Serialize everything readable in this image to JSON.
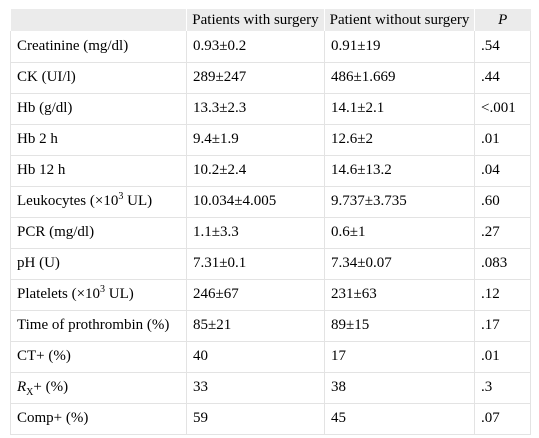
{
  "table": {
    "headers": [
      "",
      "Patients with surgery",
      "Patient without surgery",
      "P"
    ],
    "rows": [
      {
        "label": "Creatinine (mg/dl)",
        "with": "0.93±0.2",
        "without": "0.91±19",
        "p": ".54"
      },
      {
        "label": "CK (UI/l)",
        "with": "289±247",
        "without": "486±1.669",
        "p": ".44"
      },
      {
        "label": "Hb (g/dl)",
        "with": "13.3±2.3",
        "without": "14.1±2.1",
        "p": "<.001"
      },
      {
        "label": "Hb 2 h",
        "with": "9.4±1.9",
        "without": "12.6±2",
        "p": ".01"
      },
      {
        "label": "Hb 12 h",
        "with": "10.2±2.4",
        "without": "14.6±13.2",
        "p": ".04"
      },
      {
        "label_pre": "Leukocytes (×10",
        "label_sup": "3",
        "label_post": " UL)",
        "with": "10.034±4.005",
        "without": "9.737±3.735",
        "p": ".60"
      },
      {
        "label": "PCR (mg/dl)",
        "with": "1.1±3.3",
        "without": "0.6±1",
        "p": ".27"
      },
      {
        "label": "pH (U)",
        "with": "7.31±0.1",
        "without": "7.34±0.07",
        "p": ".083"
      },
      {
        "label_pre": "Platelets (×10",
        "label_sup": "3",
        "label_post": " UL)",
        "with": "246±67",
        "without": "231±63",
        "p": ".12"
      },
      {
        "label": "Time of prothrombin (%)",
        "with": "85±21",
        "without": "89±15",
        "p": ".17"
      },
      {
        "label": "CT+ (%)",
        "with": "40",
        "without": "17",
        "p": ".01"
      },
      {
        "label_italic": "R",
        "label_sub": "X",
        "label_post": "+ (%)",
        "with": "33",
        "without": "38",
        "p": ".3"
      },
      {
        "label": "Comp+ (%)",
        "with": "59",
        "without": "45",
        "p": ".07"
      }
    ]
  }
}
